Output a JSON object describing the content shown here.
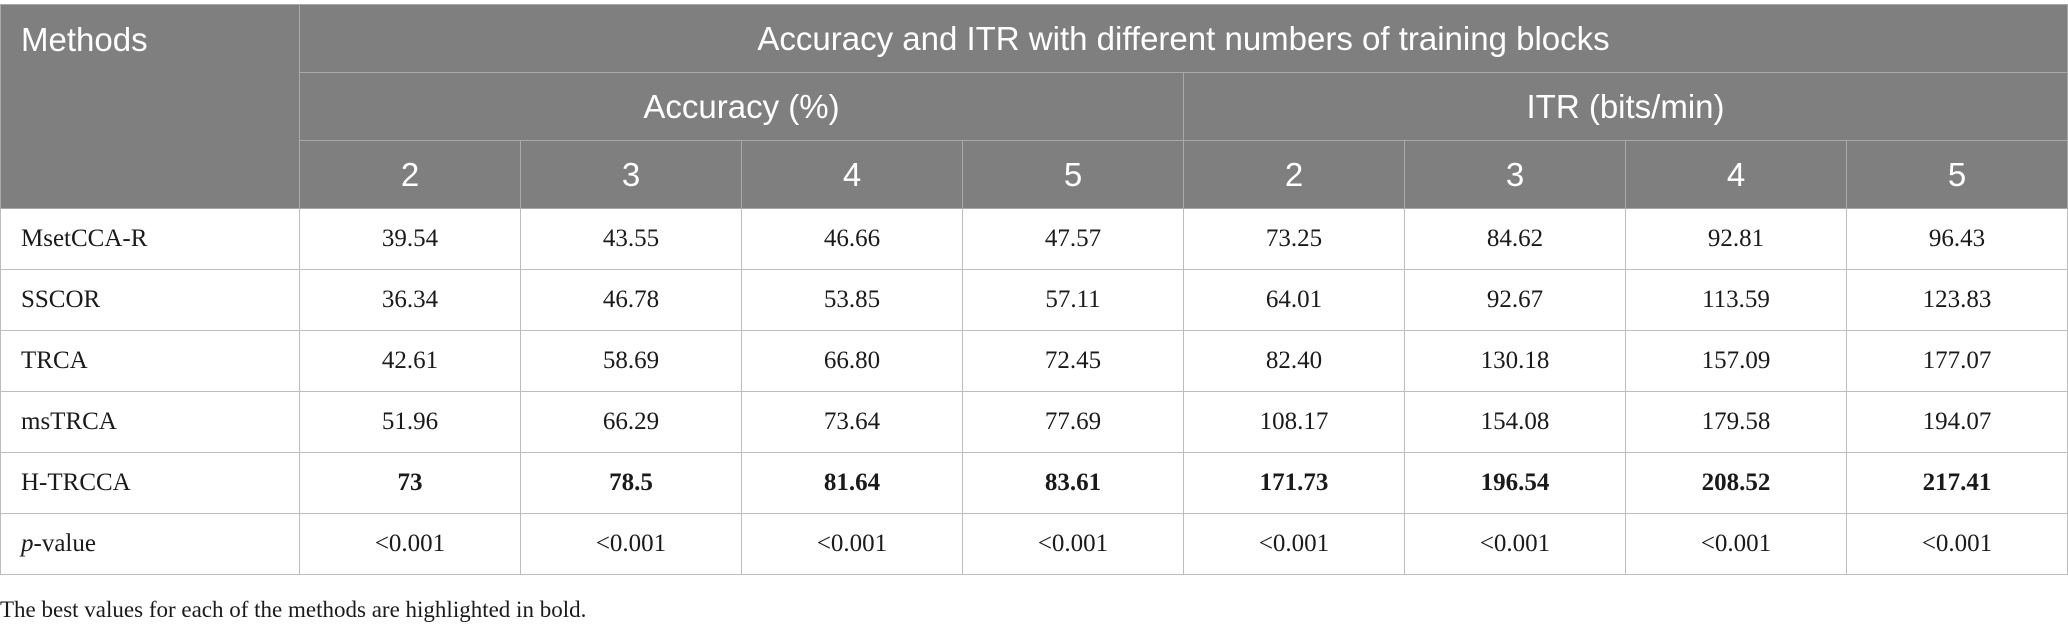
{
  "table": {
    "methods_header": "Methods",
    "group_header": "Accuracy and ITR with different numbers of training blocks",
    "accuracy_header": "Accuracy (%)",
    "itr_header": "ITR (bits/min)",
    "accuracy_blocks": [
      "2",
      "3",
      "4",
      "5"
    ],
    "itr_blocks": [
      "2",
      "3",
      "4",
      "5"
    ],
    "rows": [
      {
        "method": "MsetCCA-R",
        "values": [
          "39.54",
          "43.55",
          "46.66",
          "47.57",
          "73.25",
          "84.62",
          "92.81",
          "96.43"
        ]
      },
      {
        "method": "SSCOR",
        "values": [
          "36.34",
          "46.78",
          "53.85",
          "57.11",
          "64.01",
          "92.67",
          "113.59",
          "123.83"
        ]
      },
      {
        "method": "TRCA",
        "values": [
          "42.61",
          "58.69",
          "66.80",
          "72.45",
          "82.40",
          "130.18",
          "157.09",
          "177.07"
        ]
      },
      {
        "method": "msTRCA",
        "values": [
          "51.96",
          "66.29",
          "73.64",
          "77.69",
          "108.17",
          "154.08",
          "179.58",
          "194.07"
        ]
      },
      {
        "method": "H-TRCCA",
        "values": [
          "73",
          "78.5",
          "81.64",
          "83.61",
          "171.73",
          "196.54",
          "208.52",
          "217.41"
        ]
      }
    ],
    "pvalue_row": {
      "label_italic": "p",
      "label_rest": "-value",
      "values": [
        "<0.001",
        "<0.001",
        "<0.001",
        "<0.001",
        "<0.001",
        "<0.001",
        "<0.001",
        "<0.001"
      ]
    }
  },
  "footnote": "The best values for each of the methods are highlighted in bold."
}
